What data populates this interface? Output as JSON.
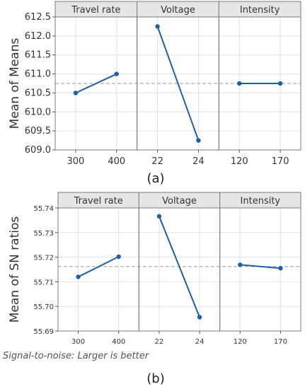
{
  "chart_data": [
    {
      "type": "line",
      "ylabel": "Mean of Means",
      "caption": "(a)",
      "reference_line": 610.75,
      "ylim": [
        609.0,
        612.5
      ],
      "yticks": [
        609.0,
        609.5,
        610.0,
        610.5,
        611.0,
        611.5,
        612.0,
        612.5
      ],
      "ytick_labels": [
        "609.0",
        "609.5",
        "610.0",
        "610.5",
        "611.0",
        "611.5",
        "612.0",
        "612.5"
      ],
      "panels": [
        {
          "title": "Travel rate",
          "x": [
            "300",
            "400"
          ],
          "values": [
            610.5,
            611.0
          ]
        },
        {
          "title": "Voltage",
          "x": [
            "22",
            "24"
          ],
          "values": [
            612.25,
            609.25
          ]
        },
        {
          "title": "Intensity",
          "x": [
            "120",
            "170"
          ],
          "values": [
            610.75,
            610.75
          ]
        }
      ],
      "grid": true,
      "colors": {
        "line": "#1f5fa8",
        "reference": "#9a9a9a",
        "header_bg": "#e6e6e6",
        "grid": "#e2e2e2"
      }
    },
    {
      "type": "line",
      "ylabel": "Mean of SN ratios",
      "caption": "(b)",
      "footnote": "Signal-to-noise: Larger is better",
      "reference_line": 55.7162,
      "ylim": [
        55.69,
        55.74
      ],
      "yticks": [
        55.69,
        55.7,
        55.71,
        55.72,
        55.73,
        55.74
      ],
      "ytick_labels": [
        "55.69",
        "55.70",
        "55.71",
        "55.72",
        "55.73",
        "55.74"
      ],
      "panels": [
        {
          "title": "Travel rate",
          "x": [
            "300",
            "400"
          ],
          "values": [
            55.712,
            55.7202
          ]
        },
        {
          "title": "Voltage",
          "x": [
            "22",
            "24"
          ],
          "values": [
            55.7366,
            55.6956
          ]
        },
        {
          "title": "Intensity",
          "x": [
            "120",
            "170"
          ],
          "values": [
            55.7169,
            55.7155
          ]
        }
      ],
      "grid": true,
      "colors": {
        "line": "#1f5fa8",
        "reference": "#9a9a9a",
        "header_bg": "#e6e6e6",
        "grid": "#e2e2e2"
      }
    }
  ]
}
